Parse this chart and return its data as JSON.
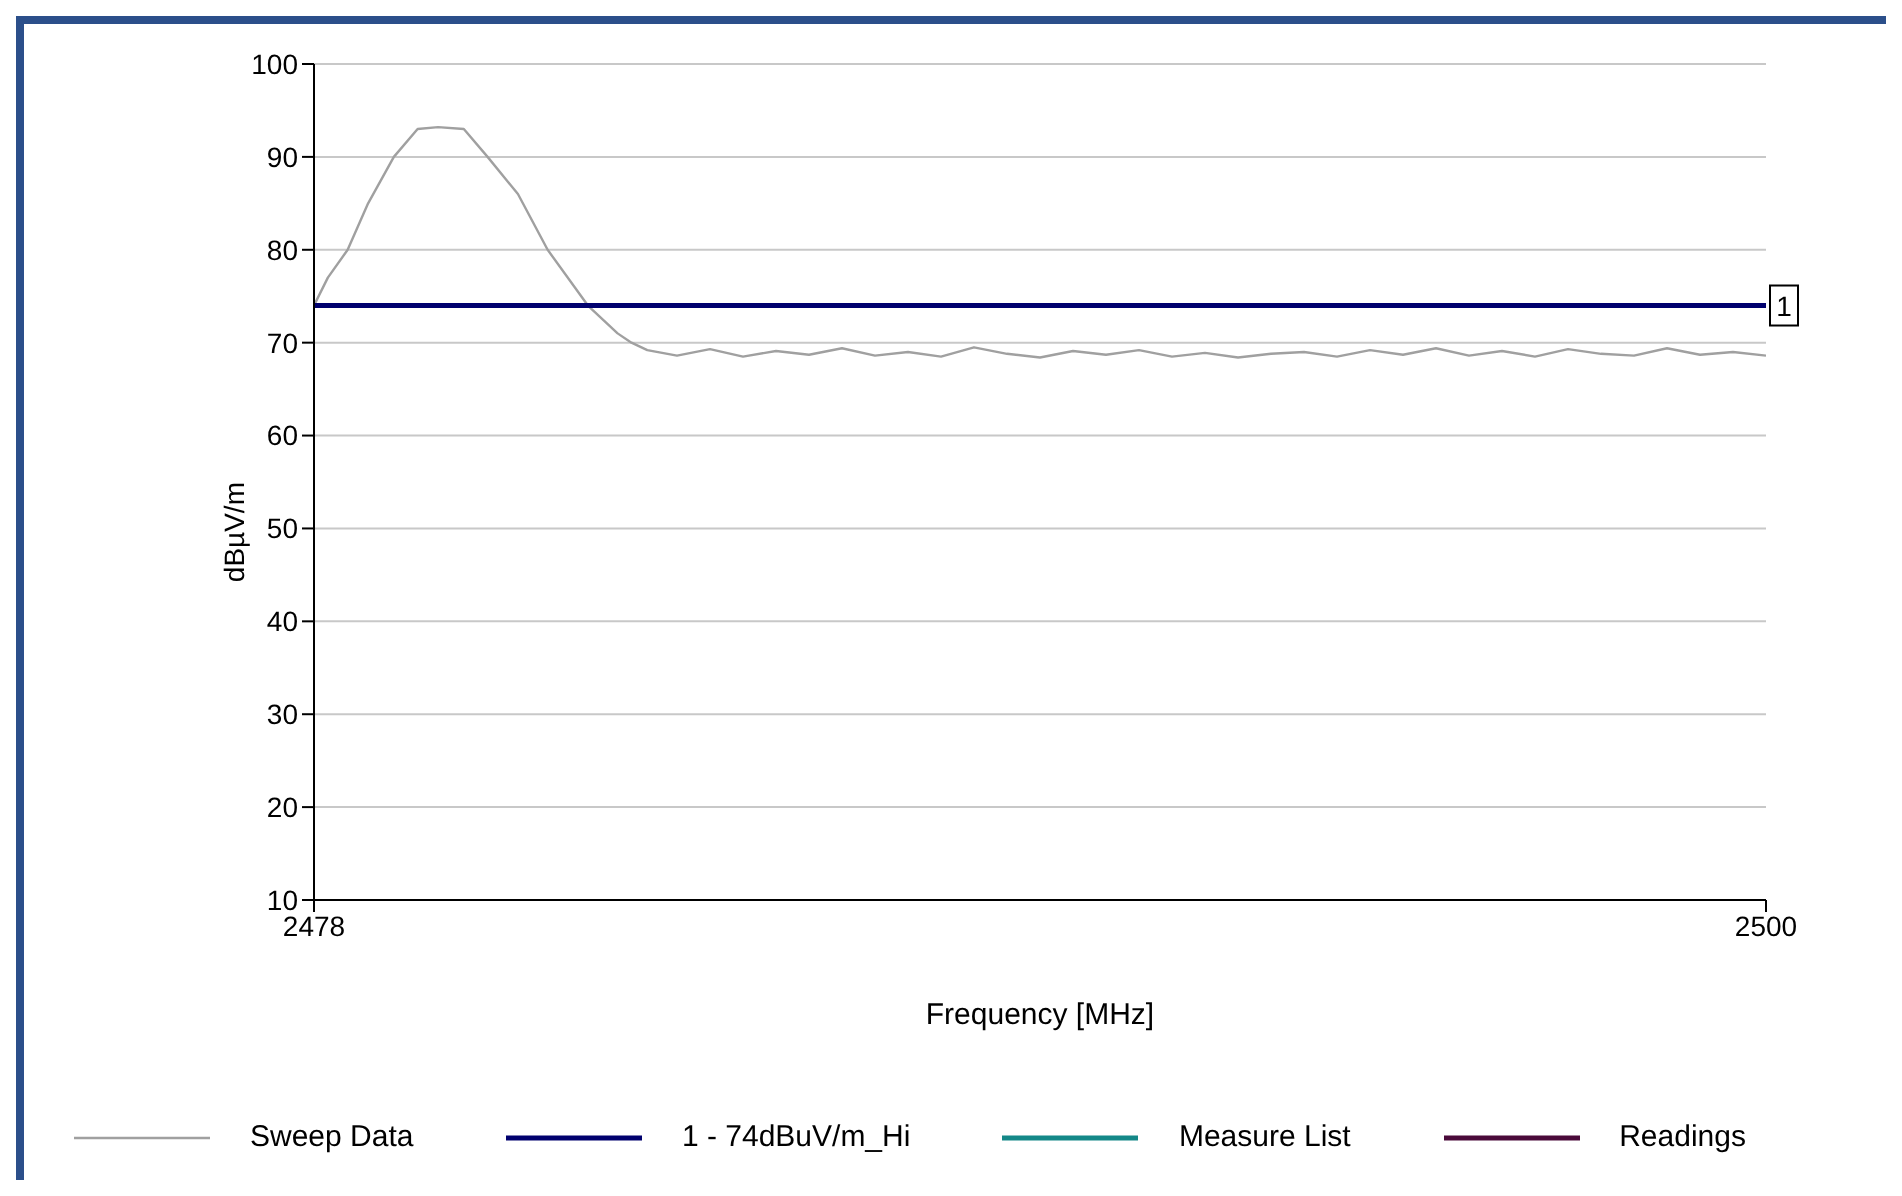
{
  "chart_data": {
    "type": "line",
    "xlabel": "Frequency [MHz]",
    "ylabel": "dBµV/m",
    "xlim": [
      2478,
      2500
    ],
    "xticks": [
      2478,
      2500
    ],
    "ylim": [
      10,
      100
    ],
    "yticks": [
      10,
      20,
      30,
      40,
      50,
      60,
      70,
      80,
      90,
      100
    ],
    "grid": "y",
    "legend": "bottom",
    "marker": "none",
    "line_style": "solid",
    "series": [
      {
        "name": "Sweep Data",
        "color": "#a0a0a0",
        "x": [
          2478.0,
          2478.21,
          2478.51,
          2478.82,
          2479.21,
          2479.57,
          2479.88,
          2480.27,
          2480.63,
          2481.09,
          2481.54,
          2482.15,
          2482.6,
          2482.81,
          2483.05,
          2483.5,
          2484,
          2484.5,
          2485,
          2485.5,
          2486,
          2486.5,
          2487,
          2487.5,
          2488,
          2488.5,
          2489,
          2489.5,
          2490,
          2490.5,
          2491,
          2491.5,
          2492,
          2492.5,
          2493,
          2493.5,
          2494,
          2494.5,
          2495,
          2495.5,
          2496,
          2496.5,
          2497,
          2497.5,
          2498,
          2498.5,
          2499,
          2499.5,
          2500
        ],
        "values": [
          74,
          77,
          80,
          85,
          90,
          93,
          93.2,
          93,
          90,
          86,
          80,
          74,
          71,
          70,
          69.2,
          68.6,
          69.3,
          68.5,
          69.1,
          68.7,
          69.4,
          68.6,
          69.0,
          68.5,
          69.5,
          68.8,
          68.4,
          69.1,
          68.7,
          69.2,
          68.5,
          68.9,
          68.4,
          68.8,
          69.0,
          68.5,
          69.2,
          68.7,
          69.4,
          68.6,
          69.1,
          68.5,
          69.3,
          68.8,
          68.6,
          69.4,
          68.7,
          69.0,
          68.6
        ]
      },
      {
        "name": "1 - 74dBuV/m_Hi",
        "color": "#00006e",
        "x": [
          2478,
          2500
        ],
        "values": [
          74,
          74
        ]
      },
      {
        "name": "Measure List",
        "color": "#148888"
      },
      {
        "name": "Readings",
        "color": "#4a0a3a"
      }
    ],
    "annotations": [
      {
        "text": "1",
        "x": 2500,
        "y": 74
      }
    ]
  }
}
